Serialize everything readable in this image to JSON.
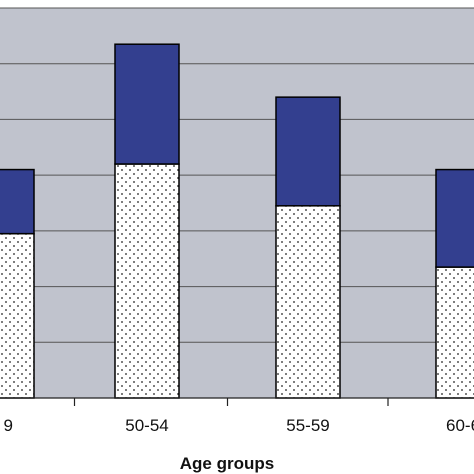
{
  "chart_data": {
    "type": "bar",
    "stacked": true,
    "xlabel": "Age groups",
    "categories": [
      "9",
      "50-54",
      "55-59",
      "60-6"
    ],
    "series": [
      {
        "pattern": "dotted",
        "color": "#ffffff",
        "values": [
          295,
          420,
          345,
          235
        ]
      },
      {
        "color": "#333f8f",
        "values": [
          115,
          215,
          195,
          175
        ]
      }
    ],
    "ylim": [
      0,
      700
    ],
    "grid": true,
    "plot_background": "#c0c3cd"
  }
}
